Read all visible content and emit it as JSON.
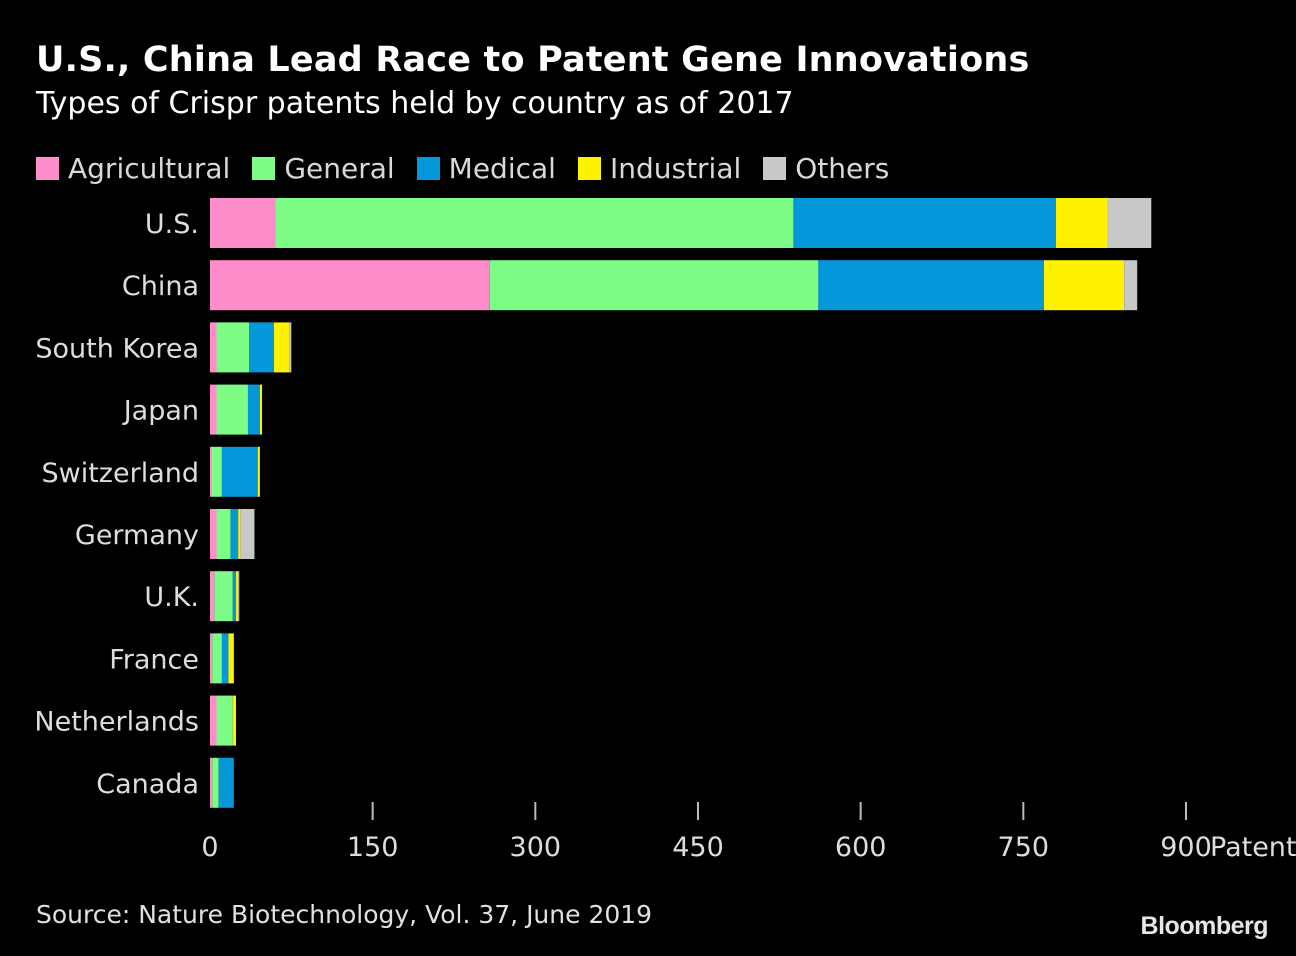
{
  "header": {
    "title": "U.S., China Lead Race to Patent Gene Innovations",
    "subtitle": "Types of Crispr patents held by country as of 2017"
  },
  "legend": [
    {
      "label": "Agricultural",
      "color": "#ff8ccb"
    },
    {
      "label": "General",
      "color": "#7dfd85"
    },
    {
      "label": "Medical",
      "color": "#0497da"
    },
    {
      "label": "Industrial",
      "color": "#fff200"
    },
    {
      "label": "Others",
      "color": "#c8c8c8"
    }
  ],
  "footer": {
    "source": "Source: Nature Biotechnology, Vol. 37, June 2019",
    "logo": "Bloomberg"
  },
  "chart_data": {
    "type": "bar",
    "orientation": "horizontal",
    "stacked": true,
    "categories": [
      "U.S.",
      "China",
      "South Korea",
      "Japan",
      "Switzerland",
      "Germany",
      "U.K.",
      "France",
      "Netherlands",
      "Canada"
    ],
    "series": [
      {
        "name": "Agricultural",
        "color": "#ff8ccb",
        "values": [
          60,
          258,
          6,
          6,
          1,
          6,
          4,
          2,
          6,
          2
        ]
      },
      {
        "name": "General",
        "color": "#7dfd85",
        "values": [
          478,
          303,
          30,
          29,
          10,
          13,
          17,
          9,
          15,
          6
        ]
      },
      {
        "name": "Medical",
        "color": "#0497da",
        "values": [
          242,
          208,
          23,
          11,
          33,
          7,
          3,
          6,
          0,
          14
        ]
      },
      {
        "name": "Industrial",
        "color": "#fff200",
        "values": [
          48,
          74,
          14,
          2,
          2,
          2,
          2,
          5,
          3,
          0
        ]
      },
      {
        "name": "Others",
        "color": "#c8c8c8",
        "values": [
          40,
          12,
          2,
          0,
          0,
          13,
          1,
          0,
          0,
          0
        ]
      }
    ],
    "xaxis": {
      "ticks": [
        0,
        150,
        300,
        450,
        600,
        750,
        900
      ],
      "unit_label": "Patents",
      "range": [
        0,
        900
      ]
    },
    "grid": false,
    "legend_position": "top-left"
  }
}
